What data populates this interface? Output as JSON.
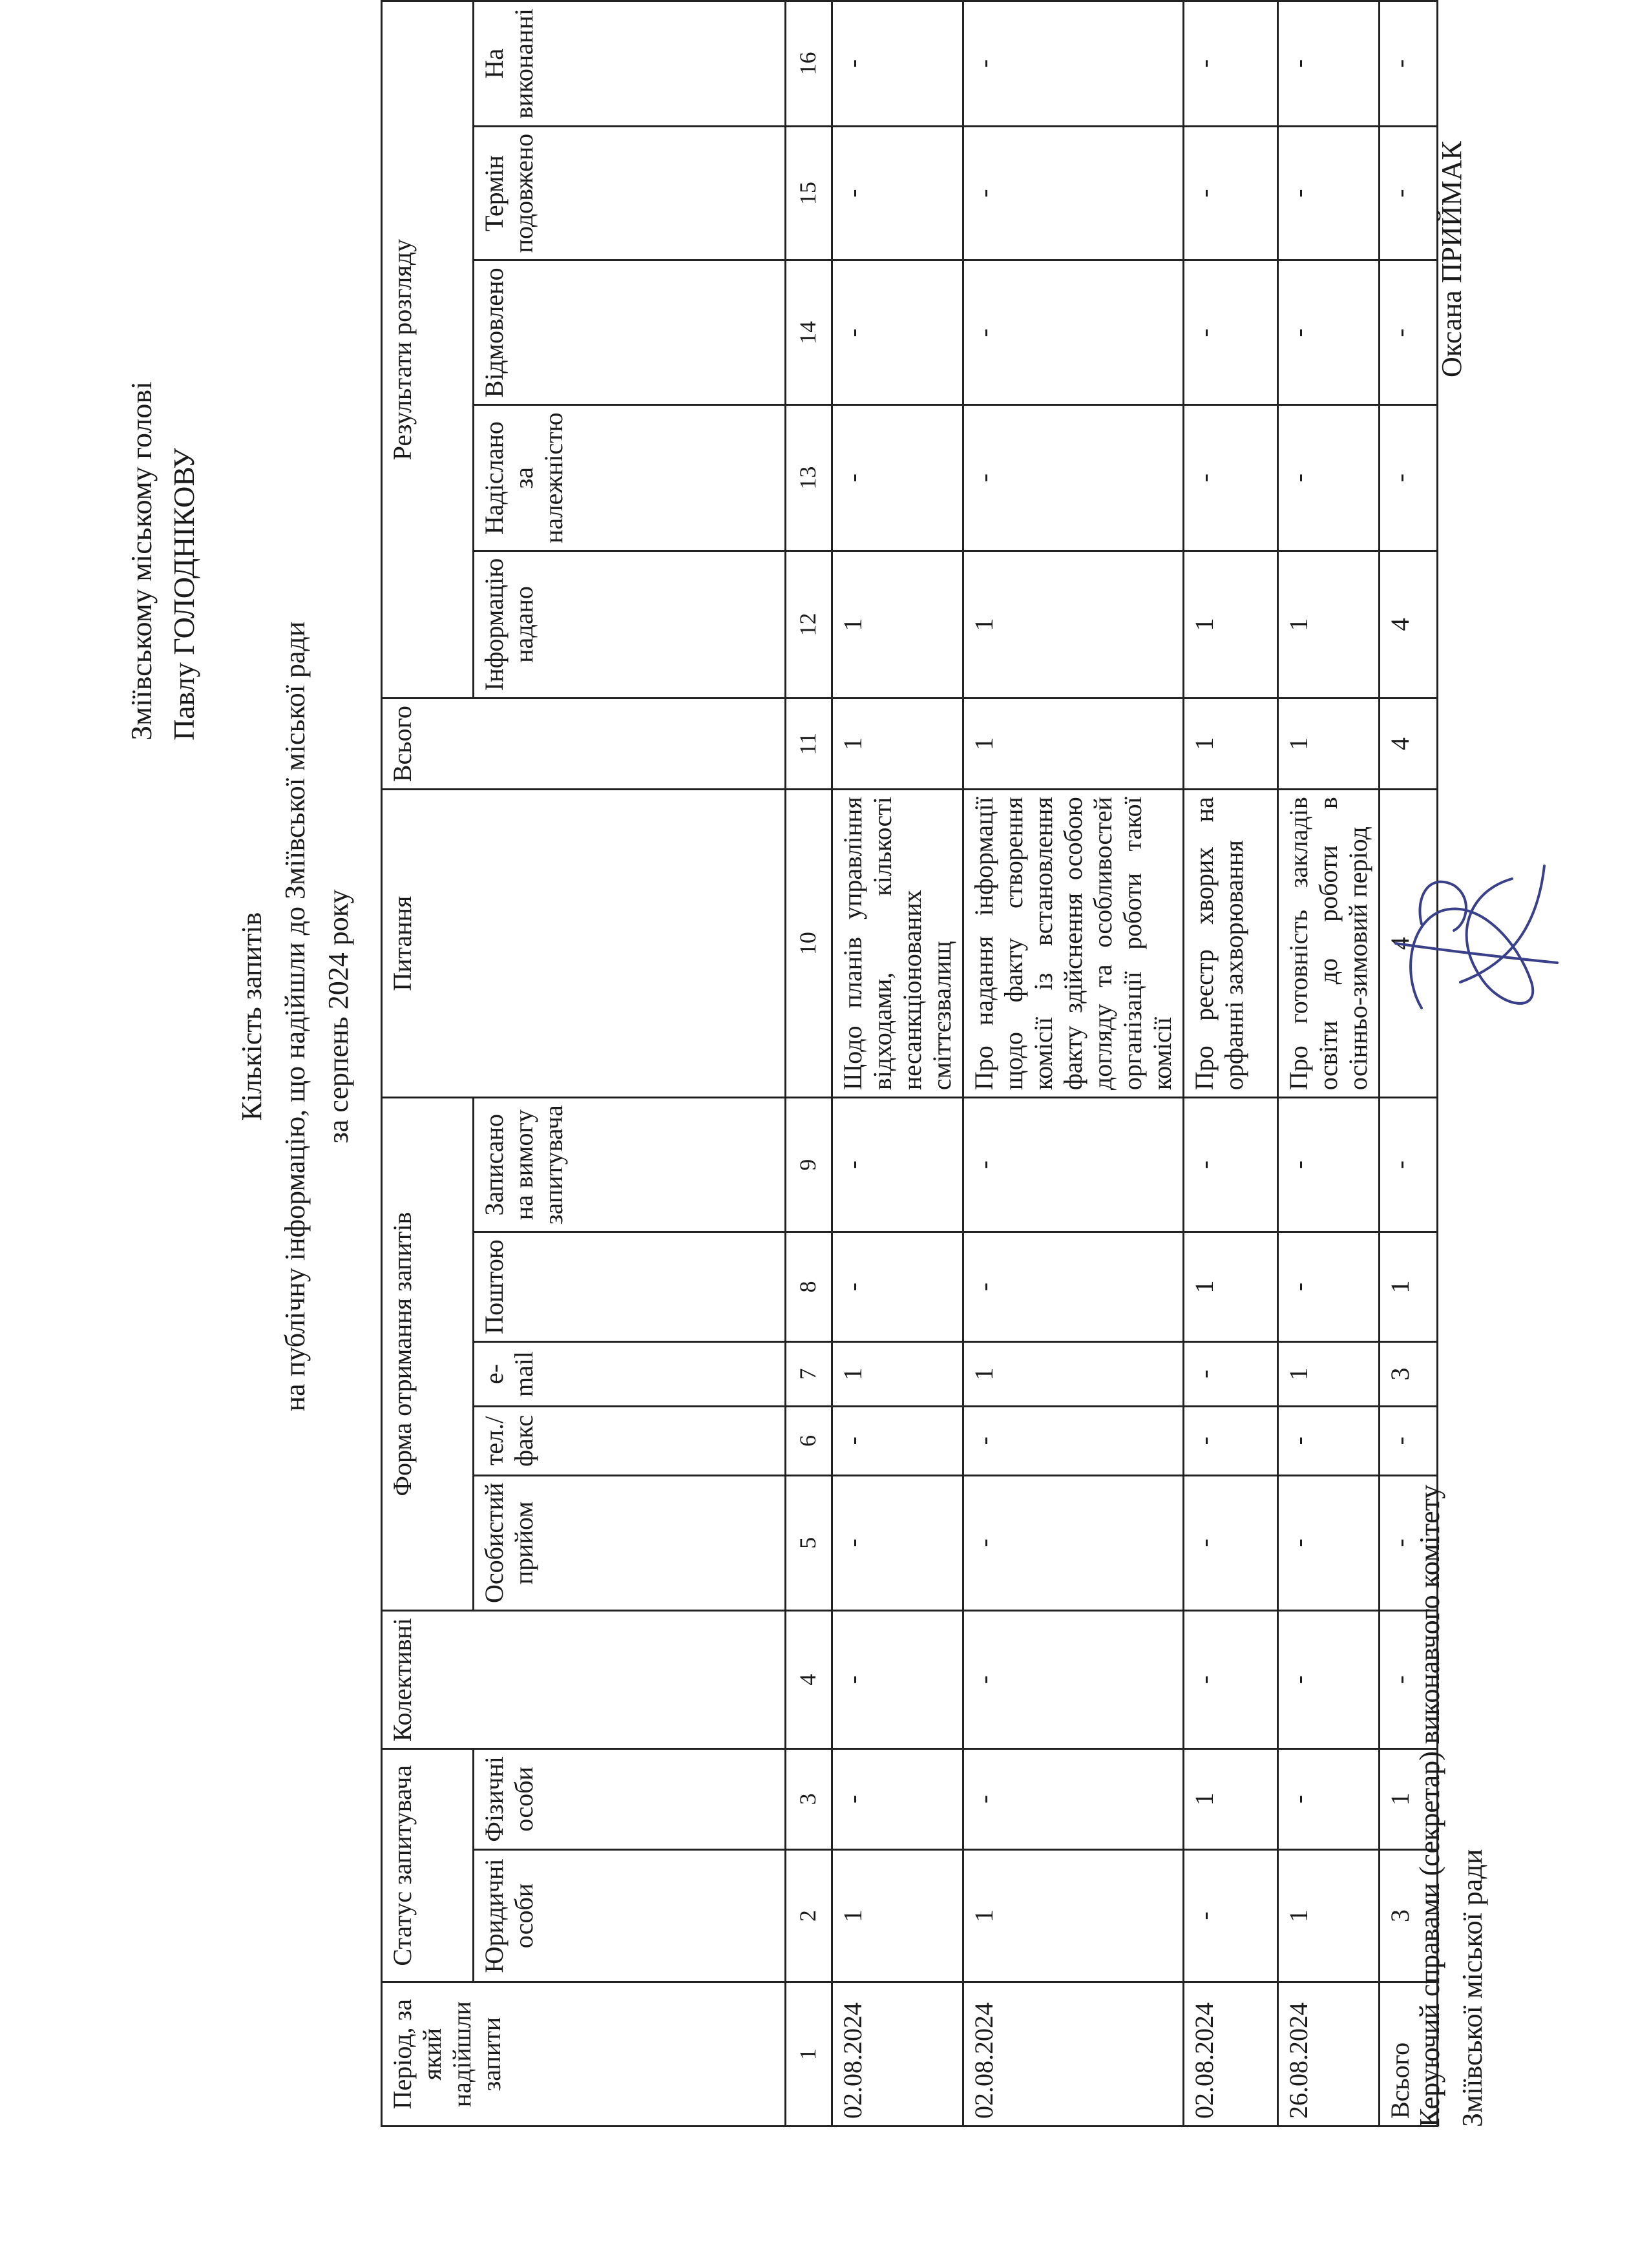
{
  "addressee": {
    "line1": "Змiївському мiському головi",
    "line2": "Павлу ГОЛОДНIКОВУ"
  },
  "title": {
    "line1": "Кiлькiсть запитiв",
    "line2": "на публiчну iнформацiю, що надiйшли до Змiївської мiської ради",
    "line3": "за серпень 2024 року"
  },
  "table": {
    "headers": {
      "period": "Перiод, за який надiйшли запити",
      "status_group": "Статус запитувача",
      "legal": "Юридичнi особи",
      "physical": "Фiзичнi особи",
      "collective": "Колективнi",
      "form_group": "Форма отримання запитiв",
      "personal": "Особистий прийом",
      "phone": "тел./факс",
      "email": "e-mail",
      "post": "Поштою",
      "on_demand": "Записано на вимогу запитувача",
      "question": "Питання",
      "total": "Всього",
      "results_group": "Результати розгляду",
      "provided": "Iнформацiю надано",
      "forwarded": "Надiслано за належнiстю",
      "refused": "Вiдмовлено",
      "extended": "Термiн подовжено",
      "in_progress": "На виконаннi"
    },
    "column_numbers": [
      "1",
      "2",
      "3",
      "4",
      "5",
      "6",
      "7",
      "8",
      "9",
      "10",
      "11",
      "12",
      "13",
      "14",
      "15",
      "16"
    ],
    "rows": [
      {
        "cells": [
          "02.08.2024",
          "1",
          "-",
          "-",
          "-",
          "-",
          "1",
          "-",
          "-",
          "Щодо планiв управлiння вiдходами, кiлькостi несанкцiонованих смiттєзвалищ",
          "1",
          "1",
          "-",
          "-",
          "-",
          "-"
        ]
      },
      {
        "cells": [
          "02.08.2024",
          "1",
          "-",
          "-",
          "-",
          "-",
          "1",
          "-",
          "-",
          "Про надання iнформацiї щодо факту створення комiсiї iз встановлення факту здiйснення особою догляду та особливостей органiзацiї роботи такої комiсiї",
          "1",
          "1",
          "-",
          "-",
          "-",
          "-"
        ]
      },
      {
        "cells": [
          "02.08.2024",
          "-",
          "1",
          "-",
          "-",
          "-",
          "-",
          "1",
          "-",
          "Про реєстр хворих на орфаннi захворювання",
          "1",
          "1",
          "-",
          "-",
          "-",
          "-"
        ]
      },
      {
        "cells": [
          "26.08.2024",
          "1",
          "-",
          "-",
          "-",
          "-",
          "1",
          "-",
          "-",
          "Про готовнiсть закладiв освiти до роботи в осiнньо-зимовий перiод",
          "1",
          "1",
          "-",
          "-",
          "-",
          "-"
        ]
      }
    ],
    "total_row": {
      "cells": [
        "Всього",
        "3",
        "1",
        "-",
        "-",
        "-",
        "3",
        "1",
        "-",
        "4",
        "4",
        "4",
        "-",
        "-",
        "-",
        "-"
      ]
    }
  },
  "footer": {
    "position_line1": "Керуючий справами (секретар) виконавчого комiтету",
    "position_line2": "Змiївської мiської ради",
    "name": "Оксана ПРИЙМАК"
  }
}
